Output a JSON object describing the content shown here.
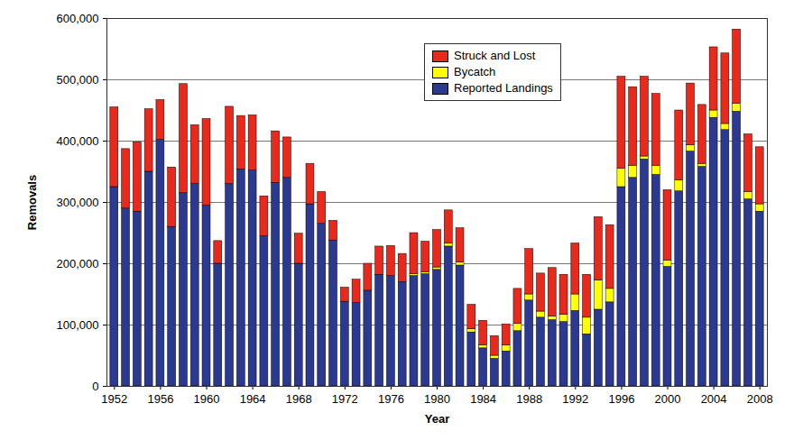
{
  "chart_data": {
    "type": "bar",
    "stacked": true,
    "xlabel": "Year",
    "ylabel": "Removals",
    "categories": [
      "1952",
      null,
      null,
      null,
      "1956",
      null,
      null,
      null,
      "1960",
      null,
      null,
      null,
      "1964",
      null,
      null,
      null,
      "1968",
      null,
      null,
      null,
      "1972",
      null,
      null,
      null,
      "1976",
      null,
      null,
      null,
      "1980",
      null,
      null,
      null,
      "1984",
      null,
      null,
      null,
      "1988",
      null,
      null,
      null,
      "1992",
      null,
      null,
      null,
      "1996",
      null,
      null,
      null,
      "2000",
      null,
      null,
      null,
      "2004",
      null,
      null,
      null,
      "2008"
    ],
    "series": [
      {
        "name": "Reported Landings",
        "color": "#2b3990",
        "values": [
          325000,
          290000,
          285000,
          350000,
          402000,
          260000,
          315000,
          330000,
          295000,
          200000,
          330000,
          354000,
          352000,
          245000,
          332000,
          340000,
          200000,
          297000,
          265000,
          238000,
          138000,
          136000,
          156000,
          182000,
          180000,
          170000,
          180000,
          183000,
          190000,
          228000,
          197000,
          88000,
          62000,
          45000,
          57000,
          90000,
          140000,
          112000,
          108000,
          105000,
          123000,
          85000,
          125000,
          137000,
          325000,
          340000,
          370000,
          345000,
          195000,
          318000,
          383000,
          358000,
          438000,
          418000,
          448000,
          305000,
          285000
        ]
      },
      {
        "name": "Bycatch",
        "color": "#ffff00",
        "values": [
          0,
          0,
          0,
          0,
          0,
          0,
          0,
          0,
          0,
          0,
          0,
          0,
          0,
          0,
          0,
          0,
          0,
          0,
          0,
          0,
          0,
          0,
          0,
          0,
          0,
          0,
          3000,
          3000,
          4000,
          5000,
          5000,
          5000,
          5000,
          5000,
          10000,
          12000,
          10000,
          10000,
          6000,
          12000,
          27000,
          27000,
          48000,
          22000,
          30000,
          20000,
          5000,
          15000,
          10000,
          18000,
          10000,
          5000,
          12000,
          10000,
          13000,
          12000,
          12000
        ]
      },
      {
        "name": "Struck and Lost",
        "color": "#e8291c",
        "values": [
          130000,
          97000,
          113000,
          102000,
          65000,
          97000,
          178000,
          96000,
          141000,
          37000,
          126000,
          87000,
          90000,
          65000,
          84000,
          66000,
          49000,
          66000,
          52000,
          32000,
          23000,
          38000,
          44000,
          46000,
          49000,
          46000,
          67000,
          50000,
          61000,
          54000,
          56000,
          40000,
          40000,
          32000,
          34000,
          57000,
          74000,
          62000,
          79000,
          65000,
          83000,
          70000,
          103000,
          104000,
          150000,
          128000,
          130000,
          117000,
          115000,
          114000,
          101000,
          96000,
          103000,
          115000,
          121000,
          94000,
          93000
        ]
      }
    ],
    "ylim": [
      0,
      600000
    ],
    "yticks": [
      0,
      {
        "value": 100000,
        "label": "100,000"
      },
      {
        "value": 200000,
        "label": "200,000"
      },
      {
        "value": 300000,
        "label": "300,000"
      },
      {
        "value": 400000,
        "label": "400,000"
      },
      {
        "value": 500000,
        "label": "500,000"
      },
      {
        "value": 600000,
        "label": "600,000"
      }
    ],
    "grid": true,
    "legend": "top"
  }
}
